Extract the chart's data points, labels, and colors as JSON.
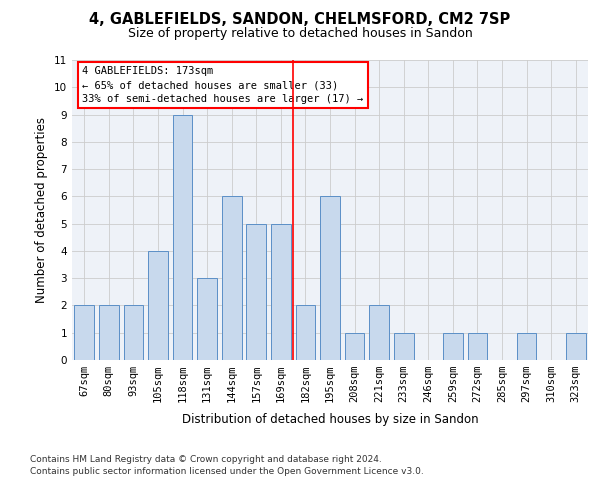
{
  "title": "4, GABLEFIELDS, SANDON, CHELMSFORD, CM2 7SP",
  "subtitle": "Size of property relative to detached houses in Sandon",
  "xlabel": "Distribution of detached houses by size in Sandon",
  "ylabel": "Number of detached properties",
  "categories": [
    "67sqm",
    "80sqm",
    "93sqm",
    "105sqm",
    "118sqm",
    "131sqm",
    "144sqm",
    "157sqm",
    "169sqm",
    "182sqm",
    "195sqm",
    "208sqm",
    "221sqm",
    "233sqm",
    "246sqm",
    "259sqm",
    "272sqm",
    "285sqm",
    "297sqm",
    "310sqm",
    "323sqm"
  ],
  "values": [
    2,
    2,
    2,
    4,
    9,
    3,
    6,
    5,
    5,
    2,
    6,
    1,
    2,
    1,
    0,
    1,
    1,
    0,
    1,
    0,
    1
  ],
  "bar_color": "#c8d9ed",
  "bar_edgecolor": "#5b8fc7",
  "bar_width": 0.8,
  "ylim": [
    0,
    11
  ],
  "yticks": [
    0,
    1,
    2,
    3,
    4,
    5,
    6,
    7,
    8,
    9,
    10,
    11
  ],
  "redline_x": 8.5,
  "annotation_line1": "4 GABLEFIELDS: 173sqm",
  "annotation_line2": "← 65% of detached houses are smaller (33)",
  "annotation_line3": "33% of semi-detached houses are larger (17) →",
  "footer1": "Contains HM Land Registry data © Crown copyright and database right 2024.",
  "footer2": "Contains public sector information licensed under the Open Government Licence v3.0.",
  "bg_color": "#eef2f8",
  "grid_color": "#cccccc",
  "title_fontsize": 10.5,
  "subtitle_fontsize": 9,
  "axis_label_fontsize": 8.5,
  "tick_fontsize": 7.5,
  "annotation_fontsize": 7.5,
  "footer_fontsize": 6.5
}
